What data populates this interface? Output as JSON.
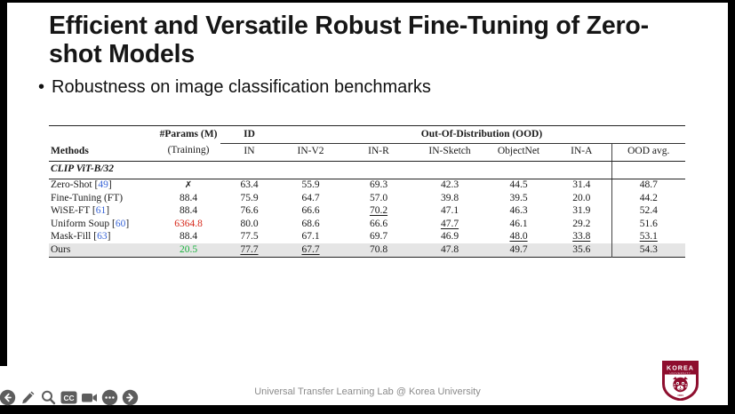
{
  "slide": {
    "title": "Efficient and Versatile Robust Fine-Tuning of Zero-shot Models",
    "bullet_marker": "•",
    "bullet": "Robustness on image classification benchmarks",
    "footer": "Universal Transfer Learning Lab @ Korea University"
  },
  "table": {
    "group_headers": [
      {
        "label": "#Params (M)"
      },
      {
        "label": "ID"
      },
      {
        "label": "Out-Of-Distribution (OOD)"
      }
    ],
    "columns": [
      "Methods",
      "(Training)",
      "IN",
      "IN-V2",
      "IN-R",
      "IN-Sketch",
      "ObjectNet",
      "IN-A",
      "OOD avg."
    ],
    "section": "CLIP ViT-B/32",
    "rows": [
      {
        "method": "Zero-Shot [49]",
        "cells": [
          {
            "v": "✗",
            "f": "x"
          },
          {
            "v": "63.4"
          },
          {
            "v": "55.9"
          },
          {
            "v": "69.3"
          },
          {
            "v": "42.3"
          },
          {
            "v": "44.5"
          },
          {
            "v": "31.4"
          },
          {
            "v": "48.7"
          }
        ]
      },
      {
        "method": "Fine-Tuning (FT)",
        "cells": [
          {
            "v": "88.4"
          },
          {
            "v": "75.9"
          },
          {
            "v": "64.7"
          },
          {
            "v": "57.0"
          },
          {
            "v": "39.8"
          },
          {
            "v": "39.5"
          },
          {
            "v": "20.0"
          },
          {
            "v": "44.2"
          }
        ]
      },
      {
        "method": "WiSE-FT [61]",
        "cells": [
          {
            "v": "88.4"
          },
          {
            "v": "76.6"
          },
          {
            "v": "66.6"
          },
          {
            "v": "70.2",
            "f": "u"
          },
          {
            "v": "47.1"
          },
          {
            "v": "46.3"
          },
          {
            "v": "31.9"
          },
          {
            "v": "52.4"
          }
        ]
      },
      {
        "method": "Uniform Soup [60]",
        "cells": [
          {
            "v": "6364.8",
            "f": "r"
          },
          {
            "v": "80.0",
            "f": "b"
          },
          {
            "v": "68.6",
            "f": "b"
          },
          {
            "v": "66.6"
          },
          {
            "v": "47.7",
            "f": "u"
          },
          {
            "v": "46.1"
          },
          {
            "v": "29.2"
          },
          {
            "v": "51.6"
          }
        ]
      },
      {
        "method": "Mask-Fill [63]",
        "cells": [
          {
            "v": "88.4"
          },
          {
            "v": "77.5"
          },
          {
            "v": "67.1"
          },
          {
            "v": "69.7"
          },
          {
            "v": "46.9"
          },
          {
            "v": "48.0",
            "f": "u"
          },
          {
            "v": "33.8",
            "f": "u"
          },
          {
            "v": "53.1",
            "f": "u"
          }
        ]
      },
      {
        "method": "Ours",
        "highlight": true,
        "cells": [
          {
            "v": "20.5",
            "f": "g"
          },
          {
            "v": "77.7",
            "f": "u"
          },
          {
            "v": "67.7",
            "f": "u"
          },
          {
            "v": "70.8",
            "f": "b"
          },
          {
            "v": "47.8",
            "f": "b"
          },
          {
            "v": "49.7",
            "f": "b"
          },
          {
            "v": "35.6",
            "f": "b"
          },
          {
            "v": "54.3",
            "f": "b"
          }
        ]
      }
    ],
    "colors": {
      "red": "#d6281a",
      "green": "#17b23c",
      "citation_blue": "#3a66d8",
      "highlight_row": "#e5e5e5"
    }
  },
  "logo": {
    "name": "korea-university-crest",
    "top_text": "KOREA",
    "sub_text": "UNIVERSITY",
    "year": "1905",
    "crimson": "#8E0E2E"
  },
  "toolbar": {
    "color": "#5d5d5d",
    "captions_label": "CC",
    "icons": [
      {
        "name": "previous-slide",
        "glyph": "arrow-left-circle"
      },
      {
        "name": "pen-tools",
        "glyph": "pencil"
      },
      {
        "name": "zoom",
        "glyph": "magnifying-glass"
      },
      {
        "name": "captions",
        "glyph": "CC-badge"
      },
      {
        "name": "camera",
        "glyph": "video-camera"
      },
      {
        "name": "more-options",
        "glyph": "ellipsis-circle"
      },
      {
        "name": "next-slide",
        "glyph": "arrow-right-circle"
      }
    ]
  }
}
